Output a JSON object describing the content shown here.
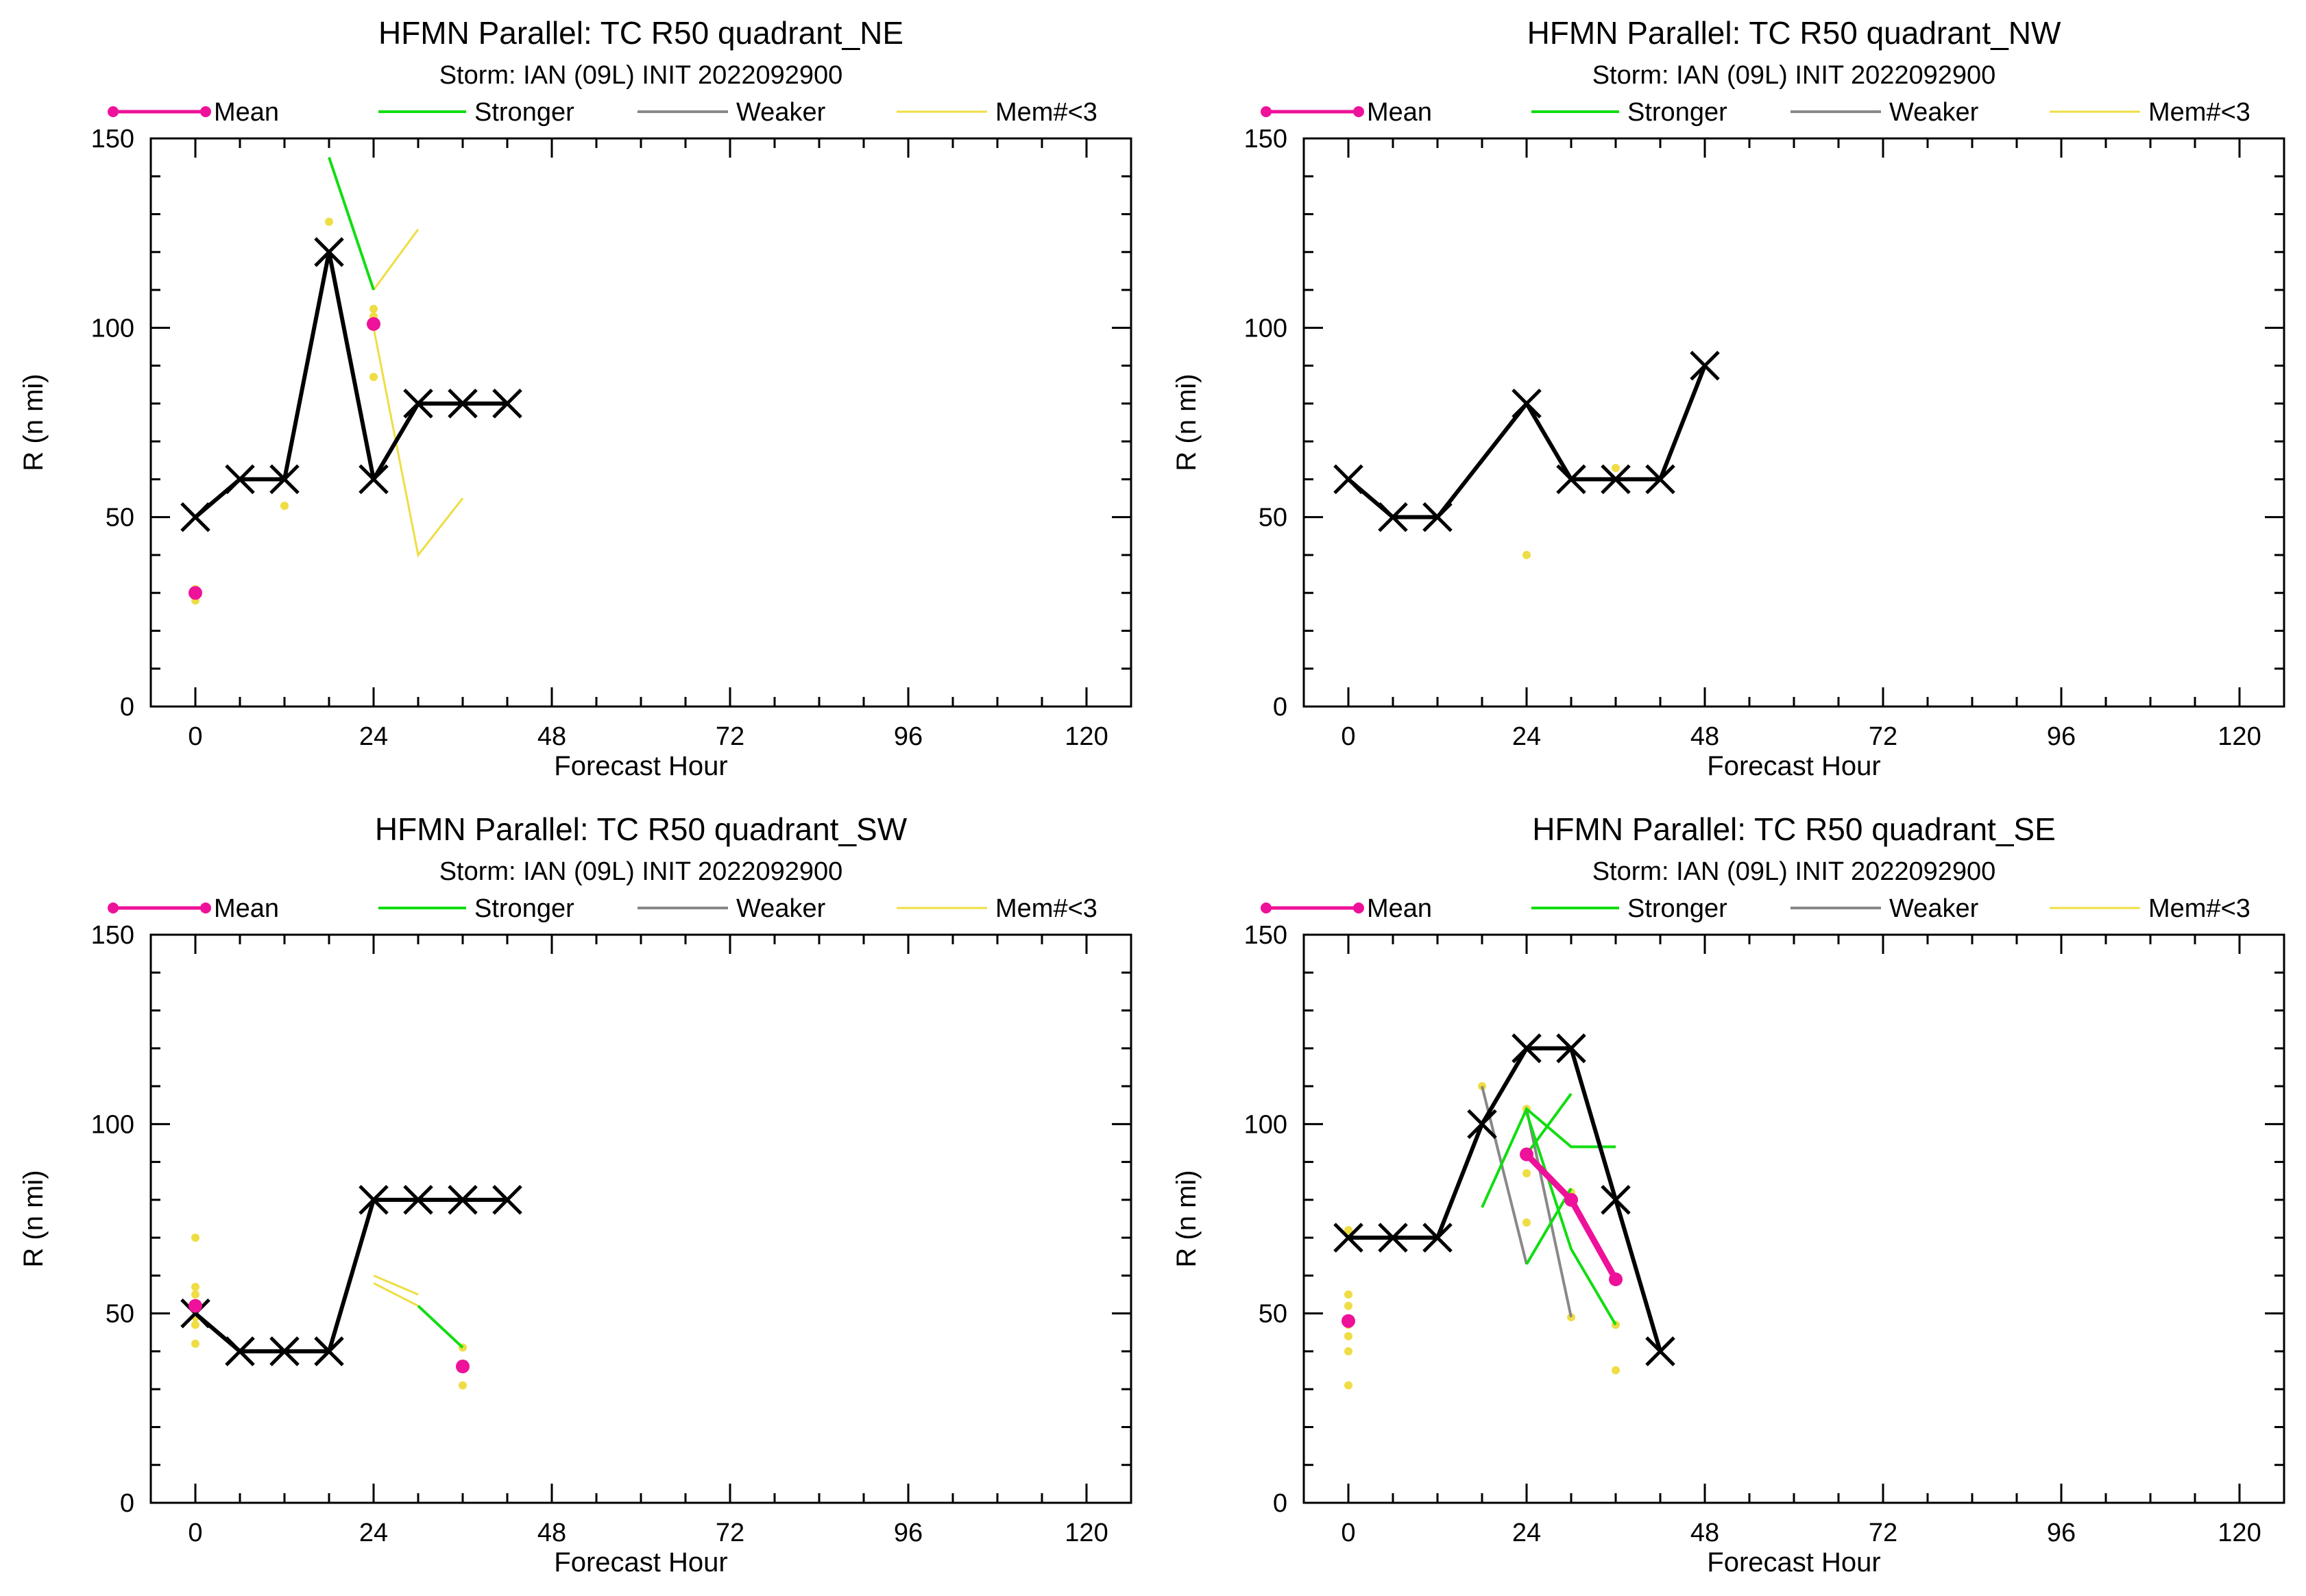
{
  "legend": {
    "mean": "Mean",
    "stronger": "Stronger",
    "weaker": "Weaker",
    "members": "Mem#<3"
  },
  "colors": {
    "mean": "#ee1199",
    "stronger": "#11dd11",
    "weaker": "#888888",
    "members": "#eedd44",
    "best_track": "#000000"
  },
  "chart_data": [
    {
      "type": "line",
      "title": "HFMN Parallel: TC  R50 quadrant_NE",
      "subtitle": "Storm: IAN (09L) INIT 2022092900",
      "xlabel": "Forecast Hour",
      "ylabel": "R (n mi)",
      "xlim": [
        -6,
        126
      ],
      "ylim": [
        0,
        150
      ],
      "xticks": [
        0,
        24,
        48,
        72,
        96,
        120
      ],
      "yticks": [
        0,
        50,
        100,
        150
      ],
      "best_track": {
        "x": [
          0,
          6,
          12,
          18,
          24,
          30,
          36,
          42
        ],
        "y": [
          50,
          60,
          60,
          120,
          60,
          80,
          80,
          80
        ]
      },
      "mean": {
        "x": [
          0,
          24
        ],
        "y": [
          30,
          101
        ]
      },
      "stronger": [
        {
          "x": [
            18,
            24
          ],
          "y": [
            145,
            110
          ]
        }
      ],
      "weaker": [],
      "members_lines": [
        {
          "x": [
            24,
            30
          ],
          "y": [
            110,
            126
          ]
        },
        {
          "x": [
            24,
            30,
            36
          ],
          "y": [
            100,
            40,
            55
          ]
        }
      ],
      "members_points": {
        "x": [
          0,
          0,
          12,
          18,
          24,
          24,
          24
        ],
        "y": [
          31,
          28,
          53,
          128,
          105,
          103,
          87
        ]
      }
    },
    {
      "type": "line",
      "title": "HFMN Parallel: TC  R50 quadrant_NW",
      "subtitle": "Storm: IAN (09L) INIT 2022092900",
      "xlabel": "Forecast Hour",
      "ylabel": "R (n mi)",
      "xlim": [
        -6,
        126
      ],
      "ylim": [
        0,
        150
      ],
      "xticks": [
        0,
        24,
        48,
        72,
        96,
        120
      ],
      "yticks": [
        0,
        50,
        100,
        150
      ],
      "best_track": {
        "x": [
          0,
          6,
          12,
          24,
          30,
          36,
          42,
          48
        ],
        "y": [
          60,
          50,
          50,
          80,
          60,
          60,
          60,
          90
        ]
      },
      "mean": {
        "x": [],
        "y": []
      },
      "stronger": [],
      "weaker": [],
      "members_lines": [],
      "members_points": {
        "x": [
          24,
          36
        ],
        "y": [
          40,
          63
        ]
      }
    },
    {
      "type": "line",
      "title": "HFMN Parallel: TC  R50 quadrant_SW",
      "subtitle": "Storm: IAN (09L) INIT 2022092900",
      "xlabel": "Forecast Hour",
      "ylabel": "R (n mi)",
      "xlim": [
        -6,
        126
      ],
      "ylim": [
        0,
        150
      ],
      "xticks": [
        0,
        24,
        48,
        72,
        96,
        120
      ],
      "yticks": [
        0,
        50,
        100,
        150
      ],
      "best_track": {
        "x": [
          0,
          6,
          12,
          18,
          24,
          30,
          36,
          42
        ],
        "y": [
          50,
          40,
          40,
          40,
          80,
          80,
          80,
          80
        ]
      },
      "mean": {
        "x": [
          0,
          36
        ],
        "y": [
          52,
          36
        ]
      },
      "stronger": [
        {
          "x": [
            30,
            36
          ],
          "y": [
            52,
            41
          ]
        }
      ],
      "weaker": [],
      "members_lines": [
        {
          "x": [
            24,
            30
          ],
          "y": [
            60,
            55
          ]
        },
        {
          "x": [
            24,
            30
          ],
          "y": [
            58,
            52
          ]
        }
      ],
      "members_points": {
        "x": [
          0,
          0,
          0,
          0,
          0,
          0,
          0,
          36,
          36
        ],
        "y": [
          70,
          57,
          55,
          52,
          49,
          47,
          42,
          41,
          31
        ]
      }
    },
    {
      "type": "line",
      "title": "HFMN Parallel: TC  R50 quadrant_SE",
      "subtitle": "Storm: IAN (09L) INIT 2022092900",
      "xlabel": "Forecast Hour",
      "ylabel": "R (n mi)",
      "xlim": [
        -6,
        126
      ],
      "ylim": [
        0,
        150
      ],
      "xticks": [
        0,
        24,
        48,
        72,
        96,
        120
      ],
      "yticks": [
        0,
        50,
        100,
        150
      ],
      "best_track": {
        "x": [
          0,
          6,
          12,
          18,
          24,
          30,
          36,
          42
        ],
        "y": [
          70,
          70,
          70,
          100,
          120,
          120,
          80,
          40
        ]
      },
      "mean": {
        "x": [
          0,
          24,
          30,
          36
        ],
        "y": [
          48,
          92,
          80,
          59
        ]
      },
      "stronger": [
        {
          "x": [
            18,
            24,
            30,
            36
          ],
          "y": [
            78,
            104,
            94,
            94
          ]
        },
        {
          "x": [
            24,
            30
          ],
          "y": [
            63,
            83
          ]
        },
        {
          "x": [
            24,
            30
          ],
          "y": [
            92,
            108
          ]
        },
        {
          "x": [
            24,
            30,
            36
          ],
          "y": [
            103,
            67,
            47
          ]
        }
      ],
      "weaker": [
        {
          "x": [
            18,
            24
          ],
          "y": [
            110,
            63
          ]
        },
        {
          "x": [
            24,
            30
          ],
          "y": [
            104,
            49
          ]
        }
      ],
      "members_lines": [],
      "members_points": {
        "x": [
          0,
          0,
          0,
          0,
          0,
          0,
          0,
          18,
          24,
          24,
          24,
          30,
          30,
          36,
          36
        ],
        "y": [
          72,
          55,
          52,
          47,
          44,
          40,
          31,
          110,
          104,
          87,
          74,
          82,
          49,
          47,
          35
        ]
      }
    }
  ]
}
